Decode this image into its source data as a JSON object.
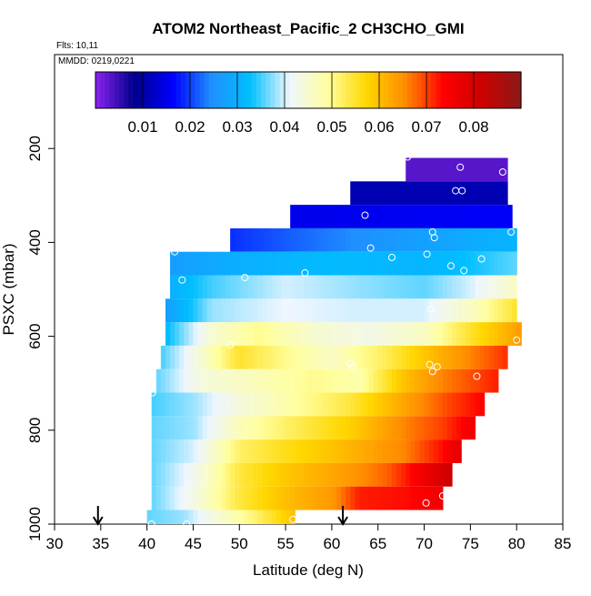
{
  "chart_data": {
    "type": "heatmap",
    "title": "ATOM2 Northeast_Pacific_2 CH3CHO_GMI",
    "annotations": [
      "Flts: 10,11",
      "MMDD: 0219,0221"
    ],
    "xlabel": "Latitude (deg N)",
    "ylabel": "PSXC (mbar)",
    "xlim": [
      30,
      85
    ],
    "ylim": [
      1000,
      0
    ],
    "x_ticks": [
      30,
      35,
      40,
      45,
      50,
      55,
      60,
      65,
      70,
      75,
      80,
      85
    ],
    "y_ticks": [
      200,
      400,
      600,
      800,
      1000
    ],
    "colorbar": {
      "range": [
        0,
        0.09
      ],
      "ticks": [
        "0.01",
        "0.02",
        "0.03",
        "0.04",
        "0.05",
        "0.06",
        "0.07",
        "0.08"
      ],
      "stops": [
        "#8b23f0",
        "#00008b",
        "#0000ff",
        "#1f8fff",
        "#00bfff",
        "#eef6ff",
        "#ffffa0",
        "#ffd700",
        "#ff8c00",
        "#ff0000",
        "#cc0000",
        "#8b1a1a"
      ]
    },
    "bands": [
      {
        "p0": 220,
        "p1": 270,
        "x0": 68,
        "x1": 79,
        "v": [
          [
            68,
            0.003
          ],
          [
            79,
            0.003
          ]
        ]
      },
      {
        "p0": 270,
        "p1": 320,
        "x0": 62,
        "x1": 79,
        "v": [
          [
            62,
            0.011
          ],
          [
            79,
            0.011
          ]
        ]
      },
      {
        "p0": 320,
        "p1": 370,
        "x0": 55.5,
        "x1": 79.5,
        "v": [
          [
            55.5,
            0.015
          ],
          [
            79.5,
            0.016
          ]
        ]
      },
      {
        "p0": 370,
        "p1": 420,
        "x0": 49,
        "x1": 80,
        "v": [
          [
            49,
            0.019
          ],
          [
            56,
            0.022
          ],
          [
            66,
            0.026
          ],
          [
            74,
            0.029
          ],
          [
            80,
            0.031
          ]
        ]
      },
      {
        "p0": 420,
        "p1": 470,
        "x0": 42.5,
        "x1": 80,
        "v": [
          [
            42.5,
            0.027
          ],
          [
            50,
            0.03
          ],
          [
            60,
            0.032
          ],
          [
            70,
            0.031
          ],
          [
            75,
            0.033
          ],
          [
            80,
            0.036
          ]
        ]
      },
      {
        "p0": 470,
        "p1": 520,
        "x0": 42.5,
        "x1": 80,
        "v": [
          [
            42.5,
            0.03
          ],
          [
            47,
            0.035
          ],
          [
            55,
            0.04
          ],
          [
            62,
            0.038
          ],
          [
            70,
            0.036
          ],
          [
            75,
            0.04
          ],
          [
            80,
            0.046
          ]
        ]
      },
      {
        "p0": 520,
        "p1": 570,
        "x0": 42,
        "x1": 80,
        "v": [
          [
            42,
            0.027
          ],
          [
            47,
            0.038
          ],
          [
            55,
            0.041
          ],
          [
            62,
            0.04
          ],
          [
            70,
            0.04
          ],
          [
            75,
            0.046
          ],
          [
            80,
            0.055
          ]
        ]
      },
      {
        "p0": 570,
        "p1": 620,
        "x0": 42,
        "x1": 80.5,
        "v": [
          [
            42,
            0.032
          ],
          [
            47,
            0.045
          ],
          [
            52,
            0.05
          ],
          [
            58,
            0.045
          ],
          [
            64,
            0.043
          ],
          [
            70,
            0.046
          ],
          [
            75,
            0.055
          ],
          [
            80.5,
            0.064
          ]
        ]
      },
      {
        "p0": 620,
        "p1": 670,
        "x0": 41.5,
        "x1": 79,
        "v": [
          [
            41.5,
            0.035
          ],
          [
            46,
            0.045
          ],
          [
            50,
            0.055
          ],
          [
            55,
            0.05
          ],
          [
            60,
            0.046
          ],
          [
            66,
            0.053
          ],
          [
            72,
            0.062
          ],
          [
            79,
            0.071
          ]
        ]
      },
      {
        "p0": 670,
        "p1": 720,
        "x0": 41,
        "x1": 78,
        "v": [
          [
            41,
            0.036
          ],
          [
            46,
            0.044
          ],
          [
            52,
            0.047
          ],
          [
            58,
            0.05
          ],
          [
            63,
            0.048
          ],
          [
            68,
            0.06
          ],
          [
            72,
            0.066
          ],
          [
            78,
            0.072
          ]
        ]
      },
      {
        "p0": 720,
        "p1": 770,
        "x0": 40.5,
        "x1": 76.5,
        "v": [
          [
            40.5,
            0.035
          ],
          [
            45,
            0.038
          ],
          [
            50,
            0.044
          ],
          [
            55,
            0.048
          ],
          [
            62,
            0.054
          ],
          [
            68,
            0.063
          ],
          [
            73,
            0.07
          ],
          [
            76.5,
            0.074
          ]
        ]
      },
      {
        "p0": 770,
        "p1": 820,
        "x0": 40.5,
        "x1": 75.5,
        "v": [
          [
            40.5,
            0.036
          ],
          [
            45,
            0.038
          ],
          [
            50,
            0.047
          ],
          [
            55,
            0.052
          ],
          [
            62,
            0.058
          ],
          [
            68,
            0.066
          ],
          [
            72,
            0.07
          ],
          [
            75.5,
            0.076
          ]
        ]
      },
      {
        "p0": 820,
        "p1": 870,
        "x0": 40.5,
        "x1": 74,
        "v": [
          [
            40.5,
            0.036
          ],
          [
            45,
            0.04
          ],
          [
            50,
            0.052
          ],
          [
            55,
            0.056
          ],
          [
            62,
            0.061
          ],
          [
            68,
            0.066
          ],
          [
            72,
            0.073
          ],
          [
            74,
            0.078
          ]
        ]
      },
      {
        "p0": 870,
        "p1": 920,
        "x0": 40.5,
        "x1": 73,
        "v": [
          [
            40.5,
            0.036
          ],
          [
            45,
            0.042
          ],
          [
            50,
            0.054
          ],
          [
            55,
            0.059
          ],
          [
            62,
            0.064
          ],
          [
            66,
            0.068
          ],
          [
            70,
            0.076
          ],
          [
            73,
            0.082
          ]
        ]
      },
      {
        "p0": 920,
        "p1": 970,
        "x0": 40.5,
        "x1": 72,
        "v": [
          [
            40.5,
            0.036
          ],
          [
            45,
            0.043
          ],
          [
            50,
            0.054
          ],
          [
            55,
            0.06
          ],
          [
            60,
            0.064
          ],
          [
            63,
            0.072
          ],
          [
            68,
            0.073
          ],
          [
            72,
            0.076
          ]
        ]
      },
      {
        "p0": 970,
        "p1": 1000,
        "x0": 40,
        "x1": 56,
        "v": [
          [
            40,
            0.036
          ],
          [
            44,
            0.038
          ],
          [
            48,
            0.045
          ],
          [
            52,
            0.052
          ],
          [
            56,
            0.06
          ]
        ]
      }
    ],
    "points": [
      [
        68.2,
        218
      ],
      [
        73.9,
        240
      ],
      [
        78.5,
        250
      ],
      [
        73.4,
        290
      ],
      [
        74.1,
        290
      ],
      [
        63.6,
        342
      ],
      [
        70.9,
        378
      ],
      [
        71.1,
        390
      ],
      [
        79.4,
        378
      ],
      [
        43.0,
        420
      ],
      [
        64.2,
        412
      ],
      [
        70.3,
        425
      ],
      [
        66.5,
        432
      ],
      [
        76.2,
        435
      ],
      [
        72.9,
        450
      ],
      [
        74.3,
        460
      ],
      [
        43.8,
        480
      ],
      [
        50.6,
        475
      ],
      [
        57.1,
        465
      ],
      [
        70.7,
        542
      ],
      [
        49.0,
        618
      ],
      [
        80.0,
        608
      ],
      [
        62.0,
        658
      ],
      [
        62.3,
        665
      ],
      [
        70.6,
        660
      ],
      [
        70.9,
        675
      ],
      [
        71.4,
        665
      ],
      [
        75.7,
        685
      ],
      [
        40.6,
        720
      ],
      [
        70.2,
        955
      ],
      [
        72.0,
        940
      ],
      [
        40.5,
        1000
      ],
      [
        44.3,
        1000
      ],
      [
        55.8,
        990
      ]
    ],
    "arrows": [
      34.7,
      61.2
    ]
  }
}
